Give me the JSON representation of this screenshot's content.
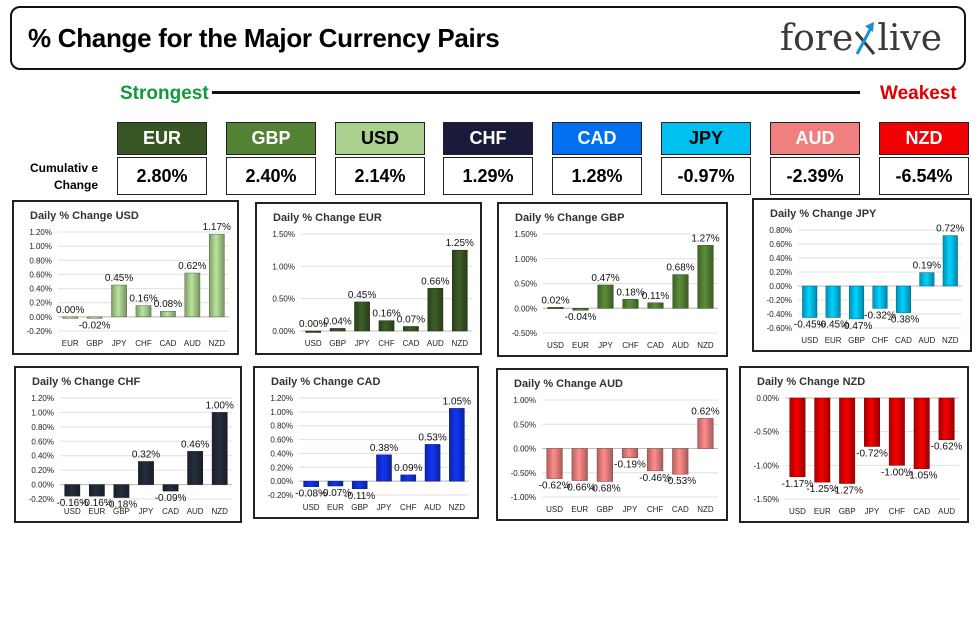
{
  "header": {
    "title": "% Change for the Major Currency Pairs",
    "logo_text_left": "fore",
    "logo_text_right": "live"
  },
  "ranking": {
    "strongest_label": "Strongest",
    "weakest_label": "Weakest",
    "cumulative_label_line1": "Cumulativ e",
    "cumulative_label_line2": "Change"
  },
  "currencies": [
    {
      "code": "EUR",
      "cumulative": "2.80%",
      "color": "#375623",
      "text_color": "#ffffff"
    },
    {
      "code": "GBP",
      "cumulative": "2.40%",
      "color": "#548235",
      "text_color": "#ffffff"
    },
    {
      "code": "USD",
      "cumulative": "2.14%",
      "color": "#a9d08e",
      "text_color": "#000000"
    },
    {
      "code": "CHF",
      "cumulative": "1.29%",
      "color": "#1a1a3a",
      "text_color": "#ffffff"
    },
    {
      "code": "CAD",
      "cumulative": "1.28%",
      "color": "#0070f0",
      "text_color": "#ffffff"
    },
    {
      "code": "JPY",
      "cumulative": "-0.97%",
      "color": "#00c0f0",
      "text_color": "#000000"
    },
    {
      "code": "AUD",
      "cumulative": "-2.39%",
      "color": "#f08080",
      "text_color": "#ffffff"
    },
    {
      "code": "NZD",
      "cumulative": "-6.54%",
      "color": "#f00000",
      "text_color": "#ffffff"
    }
  ],
  "chart_data": [
    {
      "type": "bar",
      "title": "Daily % Change USD",
      "color": "#a9d08e",
      "categories": [
        "EUR",
        "GBP",
        "JPY",
        "CHF",
        "CAD",
        "AUD",
        "NZD"
      ],
      "values": [
        0.0,
        -0.02,
        0.45,
        0.16,
        0.08,
        0.62,
        1.17
      ],
      "labels": [
        "0.00%",
        "-0.02%",
        "0.45%",
        "0.16%",
        "0.08%",
        "0.62%",
        "1.17%"
      ],
      "ylim": [
        -0.2,
        1.2
      ],
      "ticks": [
        "-0.20%",
        "0.00%",
        "0.20%",
        "0.40%",
        "0.60%",
        "0.80%",
        "1.00%",
        "1.20%"
      ]
    },
    {
      "type": "bar",
      "title": "Daily % Change EUR",
      "color": "#375623",
      "categories": [
        "USD",
        "GBP",
        "JPY",
        "CHF",
        "CAD",
        "AUD",
        "NZD"
      ],
      "values": [
        0.0,
        0.04,
        0.45,
        0.16,
        0.07,
        0.66,
        1.25
      ],
      "labels": [
        "0.00%",
        "0.04%",
        "0.45%",
        "0.16%",
        "0.07%",
        "0.66%",
        "1.25%"
      ],
      "ylim": [
        0,
        1.5
      ],
      "ticks": [
        "0.00%",
        "0.50%",
        "1.00%",
        "1.50%"
      ]
    },
    {
      "type": "bar",
      "title": "Daily % Change GBP",
      "color": "#548235",
      "categories": [
        "USD",
        "EUR",
        "JPY",
        "CHF",
        "CAD",
        "AUD",
        "NZD"
      ],
      "values": [
        0.02,
        -0.04,
        0.47,
        0.18,
        0.11,
        0.68,
        1.27
      ],
      "labels": [
        "0.02%",
        "-0.04%",
        "0.47%",
        "0.18%",
        "0.11%",
        "0.68%",
        "1.27%"
      ],
      "ylim": [
        -0.5,
        1.5
      ],
      "ticks": [
        "-0.50%",
        "0.00%",
        "0.50%",
        "1.00%",
        "1.50%"
      ]
    },
    {
      "type": "bar",
      "title": "Daily % Change JPY",
      "color": "#00c0f0",
      "categories": [
        "USD",
        "EUR",
        "GBP",
        "CHF",
        "CAD",
        "AUD",
        "NZD"
      ],
      "values": [
        -0.45,
        -0.45,
        -0.47,
        -0.32,
        -0.38,
        0.19,
        0.72
      ],
      "labels": [
        "-0.45%",
        "-0.45%",
        "-0.47%",
        "-0.32%",
        "-0.38%",
        "0.19%",
        "0.72%"
      ],
      "ylim": [
        -0.6,
        0.8
      ],
      "ticks": [
        "-0.60%",
        "-0.40%",
        "-0.20%",
        "0.00%",
        "0.20%",
        "0.40%",
        "0.60%",
        "0.80%"
      ]
    },
    {
      "type": "bar",
      "title": "Daily % Change CHF",
      "color": "#222a38",
      "categories": [
        "USD",
        "EUR",
        "GBP",
        "JPY",
        "CAD",
        "AUD",
        "NZD"
      ],
      "values": [
        -0.16,
        -0.16,
        -0.18,
        0.32,
        -0.09,
        0.46,
        1.0
      ],
      "labels": [
        "-0.16%",
        "-0.16%",
        "-0.18%",
        "0.32%",
        "-0.09%",
        "0.46%",
        "1.00%"
      ],
      "ylim": [
        -0.2,
        1.2
      ],
      "ticks": [
        "-0.20%",
        "0.00%",
        "0.20%",
        "0.40%",
        "0.60%",
        "0.80%",
        "1.00%",
        "1.20%"
      ]
    },
    {
      "type": "bar",
      "title": "Daily % Change CAD",
      "color": "#1030e0",
      "categories": [
        "USD",
        "EUR",
        "GBP",
        "JPY",
        "CHF",
        "AUD",
        "NZD"
      ],
      "values": [
        -0.08,
        -0.07,
        -0.11,
        0.38,
        0.09,
        0.53,
        1.05
      ],
      "labels": [
        "-0.08%",
        "-0.07%",
        "-0.11%",
        "0.38%",
        "0.09%",
        "0.53%",
        "1.05%"
      ],
      "ylim": [
        -0.2,
        1.2
      ],
      "ticks": [
        "-0.20%",
        "0.00%",
        "0.20%",
        "0.40%",
        "0.60%",
        "0.80%",
        "1.00%",
        "1.20%"
      ]
    },
    {
      "type": "bar",
      "title": "Daily % Change AUD",
      "color": "#f08080",
      "categories": [
        "USD",
        "EUR",
        "GBP",
        "JPY",
        "CHF",
        "CAD",
        "NZD"
      ],
      "values": [
        -0.62,
        -0.66,
        -0.68,
        -0.19,
        -0.46,
        -0.53,
        0.62
      ],
      "labels": [
        "-0.62%",
        "-0.66%",
        "-0.68%",
        "-0.19%",
        "-0.46%",
        "-0.53%",
        "0.62%"
      ],
      "ylim": [
        -1.0,
        1.0
      ],
      "ticks": [
        "-1.00%",
        "-0.50%",
        "0.00%",
        "0.50%",
        "1.00%"
      ]
    },
    {
      "type": "bar",
      "title": "Daily % Change NZD",
      "color": "#e00000",
      "categories": [
        "USD",
        "EUR",
        "GBP",
        "JPY",
        "CHF",
        "CAD",
        "AUD"
      ],
      "values": [
        -1.17,
        -1.25,
        -1.27,
        -0.72,
        -1.0,
        -1.05,
        -0.62
      ],
      "labels": [
        "-1.17%",
        "-1.25%",
        "-1.27%",
        "-0.72%",
        "-1.00%",
        "-1.05%",
        "-0.62%"
      ],
      "ylim": [
        -1.5,
        0.0
      ],
      "ticks": [
        "-1.50%",
        "-1.00%",
        "-0.50%",
        "0.00%"
      ]
    }
  ]
}
